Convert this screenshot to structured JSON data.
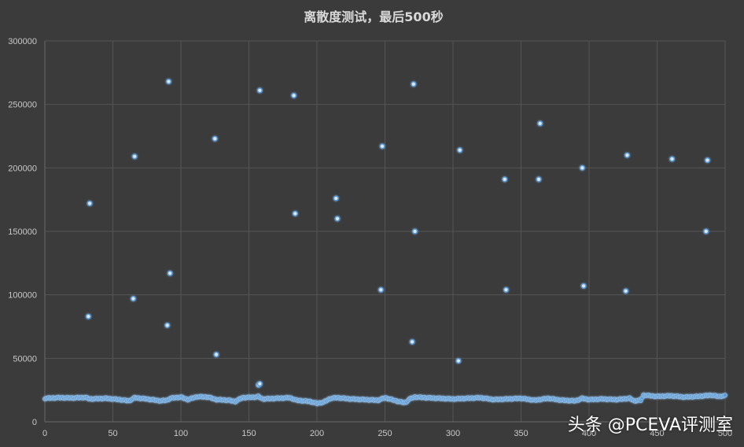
{
  "watermark": "头条 @PCEVA评测室",
  "colors": {
    "background": "#3b3b3b",
    "grid": "#555555",
    "point_fill": "#5b9bd5",
    "point_glow": "#1f4e79",
    "text": "#c8c8c8"
  },
  "chart_data": {
    "type": "scatter",
    "title": "离散度测试，最后500秒",
    "xlabel": "",
    "ylabel": "",
    "xlim": [
      0,
      500
    ],
    "ylim": [
      0,
      300000
    ],
    "xticks": [
      0,
      50,
      100,
      150,
      200,
      250,
      300,
      350,
      400,
      450,
      500
    ],
    "yticks": [
      0,
      50000,
      100000,
      150000,
      200000,
      250000,
      300000
    ],
    "grid": true,
    "legend": "none",
    "baseline_segments": [
      [
        0,
        18500
      ],
      [
        10,
        19000
      ],
      [
        20,
        18800
      ],
      [
        30,
        19200
      ],
      [
        33,
        18000
      ],
      [
        45,
        18500
      ],
      [
        55,
        17500
      ],
      [
        62,
        16500
      ],
      [
        66,
        19000
      ],
      [
        75,
        18000
      ],
      [
        85,
        16500
      ],
      [
        90,
        17000
      ],
      [
        92,
        18500
      ],
      [
        100,
        19500
      ],
      [
        105,
        17500
      ],
      [
        112,
        19800
      ],
      [
        120,
        19500
      ],
      [
        126,
        17500
      ],
      [
        135,
        17000
      ],
      [
        140,
        16000
      ],
      [
        145,
        19000
      ],
      [
        155,
        19500
      ],
      [
        157,
        20000
      ],
      [
        160,
        18000
      ],
      [
        170,
        18500
      ],
      [
        180,
        19000
      ],
      [
        185,
        17000
      ],
      [
        195,
        16000
      ],
      [
        200,
        14500
      ],
      [
        205,
        15500
      ],
      [
        210,
        18500
      ],
      [
        215,
        19000
      ],
      [
        225,
        18000
      ],
      [
        235,
        17500
      ],
      [
        245,
        17000
      ],
      [
        250,
        19000
      ],
      [
        255,
        17500
      ],
      [
        260,
        16000
      ],
      [
        265,
        15000
      ],
      [
        268,
        18000
      ],
      [
        272,
        19500
      ],
      [
        280,
        19000
      ],
      [
        290,
        18500
      ],
      [
        300,
        18000
      ],
      [
        310,
        18500
      ],
      [
        320,
        19000
      ],
      [
        330,
        17500
      ],
      [
        340,
        18000
      ],
      [
        350,
        18500
      ],
      [
        360,
        17000
      ],
      [
        370,
        18500
      ],
      [
        380,
        17000
      ],
      [
        390,
        16500
      ],
      [
        395,
        18500
      ],
      [
        400,
        17500
      ],
      [
        410,
        18000
      ],
      [
        420,
        17500
      ],
      [
        430,
        18500
      ],
      [
        433,
        16500
      ],
      [
        438,
        17000
      ],
      [
        440,
        21000
      ],
      [
        450,
        20000
      ],
      [
        460,
        20500
      ],
      [
        470,
        19500
      ],
      [
        480,
        20000
      ],
      [
        490,
        21000
      ],
      [
        495,
        20000
      ],
      [
        500,
        20500
      ]
    ],
    "outliers": [
      [
        32,
        83000
      ],
      [
        33,
        172000
      ],
      [
        65,
        97000
      ],
      [
        66,
        209000
      ],
      [
        90,
        76000
      ],
      [
        91,
        268000
      ],
      [
        92,
        117000
      ],
      [
        125,
        223000
      ],
      [
        126,
        53000
      ],
      [
        157,
        29000
      ],
      [
        158,
        30000
      ],
      [
        158,
        261000
      ],
      [
        183,
        257000
      ],
      [
        184,
        164000
      ],
      [
        214,
        176000
      ],
      [
        215,
        160000
      ],
      [
        247,
        104000
      ],
      [
        248,
        217000
      ],
      [
        270,
        63000
      ],
      [
        271,
        266000
      ],
      [
        272,
        150000
      ],
      [
        304,
        48000
      ],
      [
        305,
        214000
      ],
      [
        338,
        191000
      ],
      [
        339,
        104000
      ],
      [
        363,
        191000
      ],
      [
        364,
        235000
      ],
      [
        395,
        200000
      ],
      [
        396,
        107000
      ],
      [
        427,
        103000
      ],
      [
        428,
        210000
      ],
      [
        461,
        207000
      ],
      [
        486,
        150000
      ],
      [
        487,
        206000
      ]
    ]
  }
}
